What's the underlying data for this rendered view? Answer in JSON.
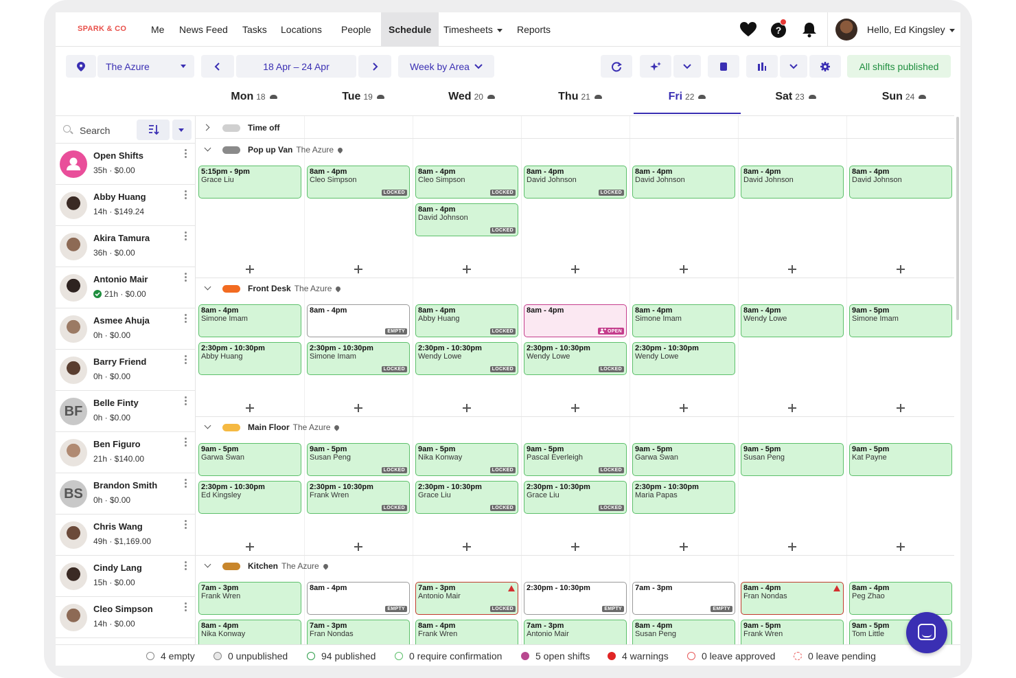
{
  "nav": {
    "brand": "SPARK & CO",
    "items": [
      "Me",
      "News Feed",
      "Tasks",
      "Locations",
      "People",
      "Schedule",
      "Timesheets",
      "Reports"
    ],
    "active": "Schedule",
    "greeting": "Hello, Ed Kingsley",
    "icons": [
      "heart-icon",
      "help-icon",
      "bell-icon"
    ]
  },
  "toolbar": {
    "location": "The Azure",
    "date_range": "18 Apr – 24 Apr",
    "view": "Week by Area",
    "publish_status": "All shifts published"
  },
  "days": [
    {
      "name": "Mon",
      "num": "18"
    },
    {
      "name": "Tue",
      "num": "19"
    },
    {
      "name": "Wed",
      "num": "20"
    },
    {
      "name": "Thu",
      "num": "21"
    },
    {
      "name": "Fri",
      "num": "22"
    },
    {
      "name": "Sat",
      "num": "23"
    },
    {
      "name": "Sun",
      "num": "24"
    }
  ],
  "active_day": "Fri",
  "search": {
    "placeholder": "Search"
  },
  "people": [
    {
      "name": "Open Shifts",
      "meta": "35h · $0.00",
      "avatar": "open"
    },
    {
      "name": "Abby Huang",
      "meta": "14h · $149.24",
      "avatar": "photo"
    },
    {
      "name": "Akira Tamura",
      "meta": "36h · $0.00",
      "avatar": "photo"
    },
    {
      "name": "Antonio Mair",
      "meta": "21h · $0.00",
      "avatar": "photo",
      "verified": true
    },
    {
      "name": "Asmee Ahuja",
      "meta": "0h · $0.00",
      "avatar": "photo"
    },
    {
      "name": "Barry Friend",
      "meta": "0h · $0.00",
      "avatar": "photo"
    },
    {
      "name": "Belle Finty",
      "meta": "0h · $0.00",
      "avatar": "initials",
      "initials": "BF"
    },
    {
      "name": "Ben Figuro",
      "meta": "21h · $140.00",
      "avatar": "photo"
    },
    {
      "name": "Brandon Smith",
      "meta": "0h · $0.00",
      "avatar": "initials",
      "initials": "BS"
    },
    {
      "name": "Chris Wang",
      "meta": "49h · $1,169.00",
      "avatar": "photo"
    },
    {
      "name": "Cindy Lang",
      "meta": "15h · $0.00",
      "avatar": "photo"
    },
    {
      "name": "Cleo Simpson",
      "meta": "14h · $0.00",
      "avatar": "photo"
    }
  ],
  "time_off": {
    "label": "Time off"
  },
  "areas": [
    {
      "name": "Pop up Van",
      "location": "The Azure",
      "color": "#8a8a8a",
      "rows": [
        [
          {
            "time": "5:15pm - 9pm",
            "person": "Grace Liu"
          },
          {
            "time": "8am - 4pm",
            "person": "Cleo Simpson",
            "tag": "LOCKED"
          },
          {
            "time": "8am - 4pm",
            "person": "Cleo Simpson",
            "tag": "LOCKED"
          },
          {
            "time": "8am - 4pm",
            "person": "David Johnson",
            "tag": "LOCKED"
          },
          {
            "time": "8am - 4pm",
            "person": "David Johnson"
          },
          {
            "time": "8am - 4pm",
            "person": "David Johnson"
          },
          {
            "time": "8am - 4pm",
            "person": "David Johnson"
          }
        ],
        [
          null,
          null,
          {
            "time": "8am - 4pm",
            "person": "David Johnson",
            "tag": "LOCKED"
          },
          null,
          null,
          null,
          null
        ]
      ]
    },
    {
      "name": "Front Desk",
      "location": "The Azure",
      "color": "#f26b21",
      "rows": [
        [
          {
            "time": "8am - 4pm",
            "person": "Simone Imam"
          },
          {
            "time": "8am - 4pm",
            "person": "",
            "tag": "EMPTY",
            "kind": "empty"
          },
          {
            "time": "8am - 4pm",
            "person": "Abby Huang",
            "tag": "LOCKED"
          },
          {
            "time": "8am - 4pm",
            "person": "",
            "tag": "OPEN",
            "kind": "open"
          },
          {
            "time": "8am - 4pm",
            "person": "Simone Imam"
          },
          {
            "time": "8am - 4pm",
            "person": "Wendy Lowe"
          },
          {
            "time": "9am - 5pm",
            "person": "Simone Imam"
          }
        ],
        [
          {
            "time": "2:30pm - 10:30pm",
            "person": "Abby Huang"
          },
          {
            "time": "2:30pm - 10:30pm",
            "person": "Simone Imam",
            "tag": "LOCKED"
          },
          {
            "time": "2:30pm - 10:30pm",
            "person": "Wendy Lowe",
            "tag": "LOCKED"
          },
          {
            "time": "2:30pm - 10:30pm",
            "person": "Wendy Lowe",
            "tag": "LOCKED"
          },
          {
            "time": "2:30pm - 10:30pm",
            "person": "Wendy Lowe"
          },
          null,
          null
        ]
      ]
    },
    {
      "name": "Main Floor",
      "location": "The Azure",
      "color": "#f5b942",
      "rows": [
        [
          {
            "time": "9am - 5pm",
            "person": "Garwa Swan"
          },
          {
            "time": "9am - 5pm",
            "person": "Susan Peng",
            "tag": "LOCKED"
          },
          {
            "time": "9am - 5pm",
            "person": "Nika Konway",
            "tag": "LOCKED"
          },
          {
            "time": "9am - 5pm",
            "person": "Pascal Everleigh",
            "tag": "LOCKED"
          },
          {
            "time": "9am - 5pm",
            "person": "Garwa Swan"
          },
          {
            "time": "9am - 5pm",
            "person": "Susan Peng"
          },
          {
            "time": "9am - 5pm",
            "person": "Kat Payne"
          }
        ],
        [
          {
            "time": "2:30pm - 10:30pm",
            "person": "Ed Kingsley"
          },
          {
            "time": "2:30pm - 10:30pm",
            "person": "Frank Wren",
            "tag": "LOCKED"
          },
          {
            "time": "2:30pm - 10:30pm",
            "person": "Grace Liu",
            "tag": "LOCKED"
          },
          {
            "time": "2:30pm - 10:30pm",
            "person": "Grace Liu",
            "tag": "LOCKED"
          },
          {
            "time": "2:30pm - 10:30pm",
            "person": "Maria Papas"
          },
          null,
          null
        ]
      ]
    },
    {
      "name": "Kitchen",
      "location": "The Azure",
      "color": "#c8862c",
      "rows": [
        [
          {
            "time": "7am - 3pm",
            "person": "Frank Wren"
          },
          {
            "time": "8am - 4pm",
            "person": "",
            "tag": "EMPTY",
            "kind": "empty"
          },
          {
            "time": "7am - 3pm",
            "person": "Antonio Mair",
            "tag": "LOCKED",
            "warning": true
          },
          {
            "time": "2:30pm - 10:30pm",
            "person": "",
            "tag": "EMPTY",
            "kind": "empty"
          },
          {
            "time": "7am - 3pm",
            "person": "",
            "tag": "EMPTY",
            "kind": "empty"
          },
          {
            "time": "8am - 4pm",
            "person": "Fran Nondas",
            "warning": true
          },
          {
            "time": "8am - 4pm",
            "person": "Peg Zhao"
          }
        ],
        [
          {
            "time": "8am - 4pm",
            "person": "Nika Konway"
          },
          {
            "time": "7am - 3pm",
            "person": "Fran Nondas"
          },
          {
            "time": "8am - 4pm",
            "person": "Frank Wren"
          },
          {
            "time": "7am - 3pm",
            "person": "Antonio Mair"
          },
          {
            "time": "8am - 4pm",
            "person": "Susan Peng"
          },
          {
            "time": "9am - 5pm",
            "person": "Frank Wren"
          },
          {
            "time": "9am - 5pm",
            "person": "Tom Little"
          }
        ]
      ]
    }
  ],
  "footer": [
    {
      "label": "4 empty",
      "style": "ring",
      "color": "#888888"
    },
    {
      "label": "0 unpublished",
      "style": "ring-grey",
      "color": "#888888"
    },
    {
      "label": "94 published",
      "style": "ring",
      "color": "#2e9e4a"
    },
    {
      "label": "0 require confirmation",
      "style": "ring",
      "color": "#5cbf6a"
    },
    {
      "label": "5 open shifts",
      "style": "fill",
      "color": "#b8488f"
    },
    {
      "label": "4 warnings",
      "style": "fill",
      "color": "#e02424"
    },
    {
      "label": "0 leave approved",
      "style": "ring",
      "color": "#e85a5a"
    },
    {
      "label": "0 leave pending",
      "style": "dashed",
      "color": "#e85a5a"
    }
  ],
  "colors": {
    "accent": "#3a2fb3",
    "shift_green": "#d4f5d7",
    "published_green": "#1e8e3e"
  }
}
